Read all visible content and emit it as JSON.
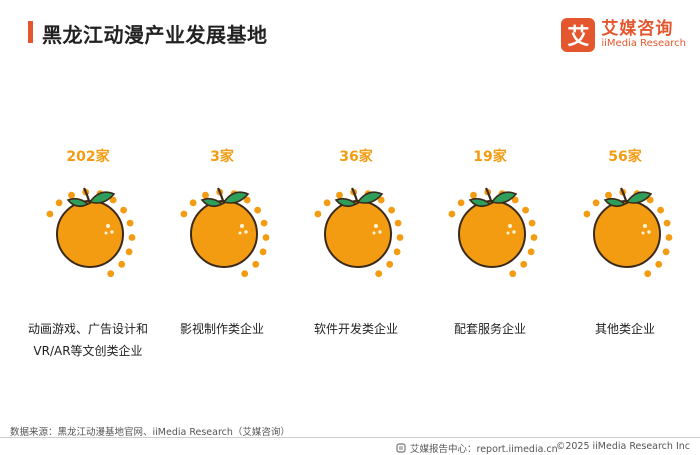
{
  "header": {
    "title": "黑龙江动漫产业发展基地",
    "accent_color": "#e4572e"
  },
  "brand": {
    "logo_char": "艾",
    "name_cn": "艾媒咨询",
    "name_en": "iiMedia Research",
    "color": "#e4572e"
  },
  "items": [
    {
      "count": "202家",
      "label": "动画游戏、广告设计和VR/AR等文创类企业",
      "icon": "orange-icon"
    },
    {
      "count": "3家",
      "label": "影视制作类企业",
      "icon": "orange-icon"
    },
    {
      "count": "36家",
      "label": "软件开发类企业",
      "icon": "orange-icon"
    },
    {
      "count": "19家",
      "label": "配套服务企业",
      "icon": "orange-icon"
    },
    {
      "count": "56家",
      "label": "其他类企业",
      "icon": "orange-icon"
    }
  ],
  "colors": {
    "count": "#f39c12",
    "orange": "#f39c12",
    "leaf": "#2e9e5b",
    "dots": "#f39c12"
  },
  "footer": {
    "source": "数据来源：黑龙江动漫基地官网、iiMedia Research（艾媒咨询）",
    "site": "艾媒报告中心：report.iimedia.cn",
    "copyright": "©2025  iiMedia Research  Inc"
  }
}
